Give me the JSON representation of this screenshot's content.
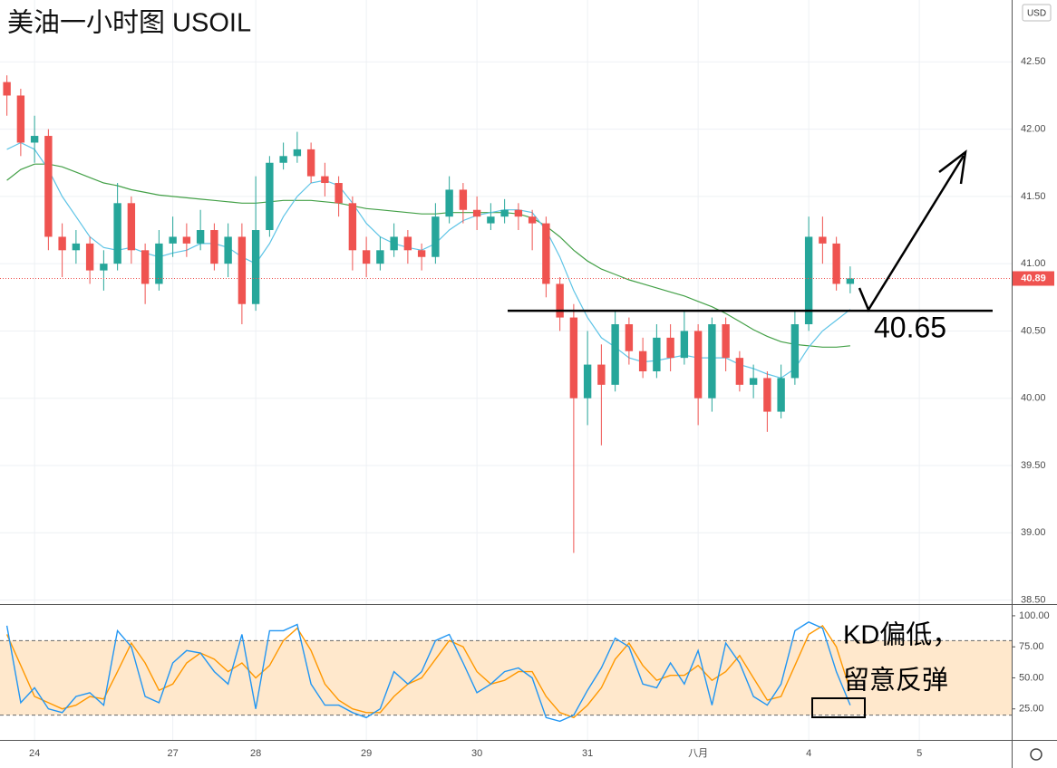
{
  "chart_data": {
    "type": "candlestick",
    "title": "美油一小时图 USOIL",
    "currency": "USD",
    "up_color": "#26a69a",
    "down_color": "#ef5350",
    "grid": true,
    "xlim": [
      -0.5,
      72.68
    ],
    "xticks": [
      {
        "value": 2,
        "label": "24"
      },
      {
        "value": 12,
        "label": "27"
      },
      {
        "value": 18,
        "label": "28"
      },
      {
        "value": 26,
        "label": "29"
      },
      {
        "value": 34,
        "label": "30"
      },
      {
        "value": 42,
        "label": "31"
      },
      {
        "value": 50,
        "label": "八月"
      },
      {
        "value": 58,
        "label": "4"
      },
      {
        "value": 66,
        "label": "5"
      }
    ],
    "ylim": [
      38.47,
      42.96
    ],
    "yticks": [
      {
        "value": 38.5,
        "label": "38.50"
      },
      {
        "value": 39,
        "label": "39.00"
      },
      {
        "value": 39.5,
        "label": "39.50"
      },
      {
        "value": 40,
        "label": "40.00"
      },
      {
        "value": 40.5,
        "label": "40.50"
      },
      {
        "value": 41,
        "label": "41.00"
      },
      {
        "value": 41.5,
        "label": "41.50"
      },
      {
        "value": 42,
        "label": "42.00"
      },
      {
        "value": 42.5,
        "label": "42.50"
      }
    ],
    "open": [
      42.35,
      42.25,
      41.9,
      41.95,
      41.2,
      41.1,
      41.15,
      40.95,
      41.0,
      41.45,
      41.1,
      40.85,
      41.15,
      41.2,
      41.15,
      41.25,
      41.0,
      41.2,
      40.7,
      41.25,
      41.75,
      41.8,
      41.85,
      41.65,
      41.6,
      41.45,
      41.1,
      41.0,
      41.1,
      41.2,
      41.1,
      41.05,
      41.35,
      41.55,
      41.4,
      41.3,
      41.35,
      41.4,
      41.35,
      41.3,
      40.85,
      40.6,
      40.0,
      40.25,
      40.1,
      40.55,
      40.35,
      40.2,
      40.45,
      40.3,
      40.5,
      40.0,
      40.55,
      40.3,
      40.1,
      40.15,
      39.9,
      40.15,
      40.55,
      41.2,
      41.15,
      40.85
    ],
    "high": [
      42.4,
      42.3,
      42.1,
      42.0,
      41.3,
      41.25,
      41.2,
      41.1,
      41.6,
      41.5,
      41.15,
      41.25,
      41.35,
      41.3,
      41.4,
      41.3,
      41.3,
      41.3,
      41.65,
      41.8,
      41.9,
      41.98,
      41.9,
      41.75,
      41.65,
      41.5,
      41.2,
      41.2,
      41.3,
      41.25,
      41.15,
      41.45,
      41.65,
      41.6,
      41.5,
      41.45,
      41.48,
      41.45,
      41.4,
      41.35,
      40.9,
      40.7,
      40.5,
      40.4,
      40.65,
      40.6,
      40.45,
      40.55,
      40.55,
      40.65,
      40.55,
      40.6,
      40.6,
      40.35,
      40.25,
      40.2,
      40.25,
      40.65,
      41.35,
      41.35,
      41.2,
      40.98
    ],
    "low": [
      42.1,
      41.8,
      41.75,
      41.1,
      40.9,
      41.0,
      40.85,
      40.8,
      40.95,
      41.0,
      40.7,
      40.8,
      41.05,
      41.05,
      41.1,
      40.95,
      40.9,
      40.55,
      40.65,
      41.2,
      41.7,
      41.75,
      41.6,
      41.5,
      41.35,
      40.95,
      40.9,
      40.95,
      41.05,
      41.0,
      40.95,
      41.0,
      41.3,
      41.3,
      41.25,
      41.25,
      41.3,
      41.25,
      41.1,
      40.75,
      40.5,
      38.85,
      39.8,
      39.65,
      40.05,
      40.25,
      40.15,
      40.15,
      40.2,
      40.25,
      39.8,
      39.9,
      40.2,
      40.05,
      40.0,
      39.75,
      39.85,
      40.1,
      40.5,
      41.0,
      40.8,
      40.78
    ],
    "close": [
      42.25,
      41.9,
      41.95,
      41.2,
      41.1,
      41.15,
      40.95,
      41.0,
      41.45,
      41.1,
      40.85,
      41.15,
      41.2,
      41.15,
      41.25,
      41.0,
      41.2,
      40.7,
      41.25,
      41.75,
      41.8,
      41.85,
      41.65,
      41.6,
      41.45,
      41.1,
      41.0,
      41.1,
      41.2,
      41.1,
      41.05,
      41.35,
      41.55,
      41.4,
      41.35,
      41.35,
      41.4,
      41.35,
      41.3,
      40.85,
      40.6,
      40.0,
      40.25,
      40.1,
      40.55,
      40.35,
      40.2,
      40.45,
      40.3,
      40.5,
      40.0,
      40.55,
      40.3,
      40.1,
      40.15,
      39.9,
      40.15,
      40.55,
      41.2,
      41.15,
      40.85,
      40.89
    ],
    "ma_lines": [
      {
        "color": "#43a047",
        "values": [
          41.62,
          41.7,
          41.74,
          41.74,
          41.72,
          41.68,
          41.64,
          41.6,
          41.58,
          41.55,
          41.53,
          41.51,
          41.5,
          41.49,
          41.48,
          41.47,
          41.46,
          41.45,
          41.45,
          41.46,
          41.47,
          41.47,
          41.47,
          41.46,
          41.45,
          41.43,
          41.41,
          41.4,
          41.39,
          41.38,
          41.37,
          41.37,
          41.38,
          41.38,
          41.38,
          41.38,
          41.38,
          41.37,
          41.34,
          41.28,
          41.2,
          41.1,
          41.02,
          40.96,
          40.92,
          40.88,
          40.85,
          40.82,
          40.79,
          40.76,
          40.72,
          40.68,
          40.63,
          40.57,
          40.51,
          40.46,
          40.42,
          40.4,
          40.39,
          40.38,
          40.38,
          40.39
        ]
      },
      {
        "color": "#5ec4e6",
        "values": [
          41.85,
          41.9,
          41.85,
          41.7,
          41.5,
          41.35,
          41.2,
          41.12,
          41.1,
          41.12,
          41.08,
          41.05,
          41.08,
          41.1,
          41.15,
          41.15,
          41.12,
          41.05,
          41.0,
          41.15,
          41.35,
          41.5,
          41.6,
          41.62,
          41.58,
          41.45,
          41.3,
          41.2,
          41.15,
          41.12,
          41.1,
          41.15,
          41.25,
          41.32,
          41.36,
          41.38,
          41.4,
          41.4,
          41.38,
          41.25,
          41.05,
          40.8,
          40.6,
          40.45,
          40.38,
          40.3,
          40.27,
          40.28,
          40.3,
          40.32,
          40.3,
          40.3,
          40.3,
          40.25,
          40.22,
          40.18,
          40.15,
          40.22,
          40.38,
          40.5,
          40.58,
          40.66
        ]
      }
    ],
    "level_line": 40.65,
    "notes": [
      "KD偏低，",
      "留意反弹"
    ],
    "stoch": {
      "ylim": [
        0,
        108.7
      ],
      "yticks": [
        {
          "value": 25,
          "label": "25.00"
        },
        {
          "value": 50,
          "label": "50.00"
        },
        {
          "value": 75,
          "label": "75.00"
        },
        {
          "value": 100,
          "label": "100.00"
        }
      ],
      "bands": [
        20,
        80
      ],
      "band_color": "#ffe8cc",
      "k": {
        "color": "#2196f3",
        "values": [
          92,
          30,
          42,
          25,
          22,
          35,
          38,
          28,
          88,
          75,
          35,
          30,
          62,
          72,
          70,
          55,
          45,
          85,
          25,
          88,
          88,
          93,
          45,
          28,
          28,
          22,
          18,
          25,
          55,
          45,
          55,
          80,
          85,
          62,
          38,
          45,
          55,
          58,
          50,
          18,
          15,
          20,
          40,
          58,
          82,
          75,
          45,
          42,
          62,
          45,
          72,
          28,
          78,
          62,
          35,
          28,
          45,
          88,
          95,
          90,
          55,
          28
        ]
      },
      "d": {
        "color": "#ff9800",
        "values": [
          85,
          60,
          35,
          30,
          25,
          28,
          35,
          33,
          55,
          78,
          62,
          40,
          45,
          62,
          70,
          65,
          55,
          62,
          50,
          60,
          80,
          90,
          72,
          45,
          32,
          25,
          22,
          22,
          35,
          45,
          50,
          65,
          80,
          75,
          55,
          45,
          48,
          55,
          55,
          35,
          22,
          18,
          28,
          42,
          65,
          78,
          60,
          48,
          52,
          52,
          60,
          48,
          55,
          68,
          50,
          32,
          35,
          60,
          85,
          92,
          75,
          40
        ]
      }
    }
  }
}
